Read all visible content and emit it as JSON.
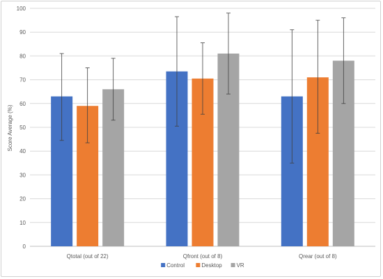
{
  "chart_data": {
    "type": "bar",
    "title": "",
    "xlabel": "",
    "ylabel": "Score Average (%)",
    "ylim": [
      0,
      100
    ],
    "yticks": [
      0,
      10,
      20,
      30,
      40,
      50,
      60,
      70,
      80,
      90,
      100
    ],
    "grid": true,
    "legend_position": "bottom",
    "categories": [
      "Qtotal (out of 22)",
      "Qfront (out of 8)",
      "Qrear (out of 8)"
    ],
    "series": [
      {
        "name": "Control",
        "color": "#4472c4",
        "values": [
          63,
          73.5,
          63
        ],
        "err_low": [
          44.5,
          50.5,
          35
        ],
        "err_high": [
          81,
          96.5,
          91
        ]
      },
      {
        "name": "Desktop",
        "color": "#ed7d31",
        "values": [
          59,
          70.5,
          71
        ],
        "err_low": [
          43.5,
          55.5,
          47.5
        ],
        "err_high": [
          75,
          85.5,
          95
        ]
      },
      {
        "name": "VR",
        "color": "#a5a5a5",
        "values": [
          66,
          81,
          78
        ],
        "err_low": [
          53,
          64,
          60
        ],
        "err_high": [
          79,
          98,
          96
        ]
      }
    ]
  }
}
